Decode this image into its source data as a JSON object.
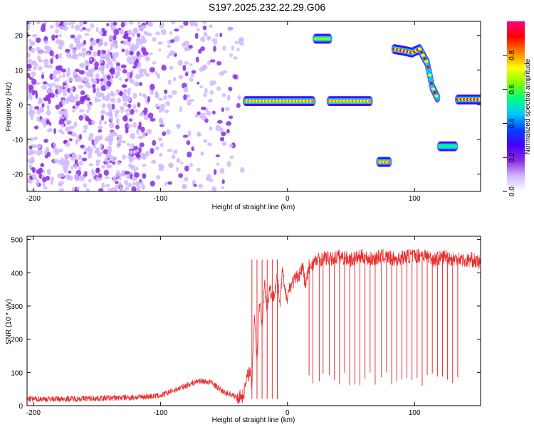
{
  "title": "S197.2025.232.22.29.G06",
  "chart_data": [
    {
      "type": "heatmap",
      "name": "spectrogram",
      "xlabel": "Height of straight line (km)",
      "ylabel": "Frequency (Hz)",
      "xlim": [
        -205,
        152
      ],
      "ylim": [
        -25,
        24
      ],
      "xticks": [
        -200,
        -100,
        0,
        100
      ],
      "xticklabels": [
        "-200",
        "-100",
        "0",
        "100"
      ],
      "yticks": [
        20,
        10,
        0,
        -10,
        -20
      ],
      "yticklabels": [
        "20",
        "10",
        "0",
        "-10",
        "-20"
      ],
      "colorbar": {
        "label": "Normalized spectral amplitude",
        "range": [
          0,
          1
        ],
        "ticks": [
          0.0,
          0.2,
          0.4,
          0.6,
          0.8
        ],
        "ticklabels": [
          "0.0",
          "0.2",
          "0.4",
          "0.6",
          "0.8"
        ],
        "colors": [
          "#ffffff",
          "#d0b8ff",
          "#8a2be2",
          "#4400ff",
          "#0044ff",
          "#00c8ff",
          "#00ff80",
          "#80ff00",
          "#ffff00",
          "#ff8000",
          "#ff0000",
          "#ff0080"
        ]
      },
      "features": [
        {
          "label": "diffuse noise",
          "x_range": [
            -205,
            -110
          ],
          "freq_range": [
            -25,
            24
          ],
          "amplitude": 0.15
        },
        {
          "label": "low-level scatter",
          "x_range": [
            -110,
            -35
          ],
          "freq_range": [
            -25,
            24
          ],
          "amplitude": 0.1
        },
        {
          "label": "tone band",
          "x_range": [
            -33,
            20
          ],
          "freq_center": 1,
          "amplitude": 0.85
        },
        {
          "label": "tone band",
          "x_range": [
            33,
            65
          ],
          "freq_center": 1,
          "amplitude": 0.85
        },
        {
          "label": "upper tone",
          "x_range": [
            22,
            33
          ],
          "freq_center": 19,
          "amplitude": 0.6
        },
        {
          "label": "lower tone",
          "x_range": [
            72,
            80
          ],
          "freq_center": -16.5,
          "amplitude": 0.8
        },
        {
          "label": "rising-falling tone",
          "x_range": [
            84,
            118
          ],
          "freq_path": [
            [
              84,
              16
            ],
            [
              92,
              15.5
            ],
            [
              98,
              15
            ],
            [
              104,
              16
            ],
            [
              110,
              12
            ],
            [
              114,
              5
            ],
            [
              118,
              2
            ]
          ],
          "amplitude": 0.9
        },
        {
          "label": "negative tone",
          "x_range": [
            120,
            132
          ],
          "freq_center": -12,
          "amplitude": 0.5
        },
        {
          "label": "end tone",
          "x_range": [
            134,
            152
          ],
          "freq_center": 1.5,
          "amplitude": 0.9
        }
      ]
    },
    {
      "type": "line",
      "name": "snr",
      "xlabel": "Height of straight line (km)",
      "ylabel": "SNR (10 * v/v)",
      "xlim": [
        -205,
        152
      ],
      "ylim": [
        0,
        510
      ],
      "xticks": [
        -200,
        -100,
        0,
        100
      ],
      "xticklabels": [
        "-200",
        "-100",
        "0",
        "100"
      ],
      "yticks": [
        0,
        100,
        200,
        300,
        400,
        500
      ],
      "yticklabels": [
        "0",
        "100",
        "200",
        "300",
        "400",
        "500"
      ],
      "color": "#e83030",
      "series": [
        {
          "name": "SNR",
          "x": [
            -205,
            -180,
            -150,
            -120,
            -100,
            -90,
            -80,
            -70,
            -60,
            -50,
            -45,
            -40,
            -35,
            -30,
            -28,
            -26,
            -24,
            -22,
            -20,
            -18,
            -16,
            -14,
            -12,
            -10,
            -8,
            -6,
            -4,
            -2,
            0,
            2,
            4,
            6,
            8,
            10,
            12,
            14,
            16,
            18,
            20,
            25,
            30,
            35,
            40,
            45,
            50,
            55,
            60,
            65,
            70,
            75,
            80,
            85,
            90,
            95,
            100,
            105,
            110,
            115,
            120,
            125,
            130,
            135,
            140,
            145,
            150,
            152
          ],
          "y": [
            20,
            20,
            22,
            25,
            30,
            45,
            60,
            75,
            70,
            40,
            35,
            25,
            30,
            110,
            60,
            280,
            130,
            320,
            250,
            370,
            290,
            360,
            320,
            350,
            390,
            300,
            410,
            340,
            330,
            360,
            370,
            380,
            390,
            400,
            420,
            360,
            400,
            420,
            430,
            440,
            445,
            440,
            450,
            445,
            440,
            445,
            450,
            440,
            445,
            450,
            445,
            440,
            445,
            450,
            450,
            455,
            450,
            440,
            445,
            450,
            440,
            445,
            435,
            440,
            430,
            435
          ],
          "dropouts": [
            -28,
            -24,
            -20,
            -16,
            -12,
            -8,
            17,
            20,
            25,
            28,
            33,
            37,
            41,
            45,
            49,
            53,
            57,
            61,
            65,
            69,
            74,
            78,
            82,
            86,
            90,
            94,
            98,
            102,
            106,
            110,
            114,
            118,
            122,
            126,
            130,
            134
          ]
        }
      ]
    }
  ]
}
